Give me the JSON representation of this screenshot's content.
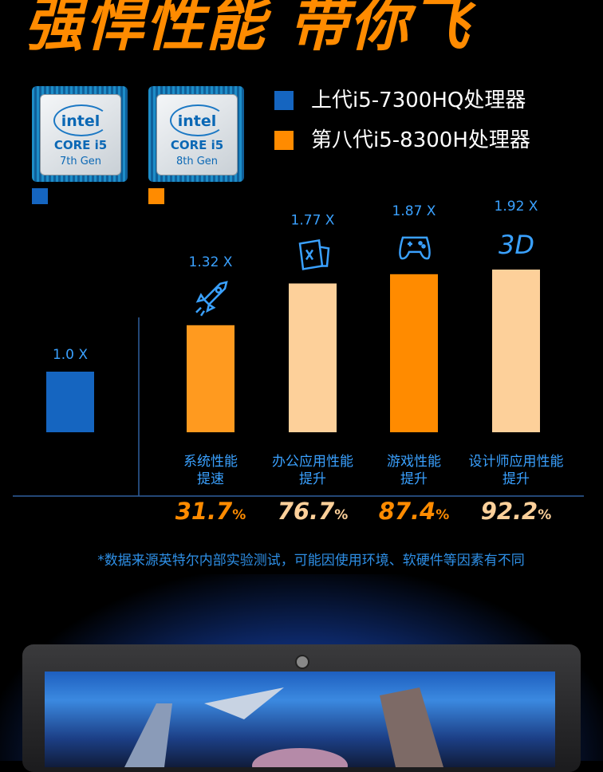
{
  "title": "强悍性能 带你飞",
  "chips": [
    {
      "brand": "intel",
      "core": "CORE i5",
      "gen": "7th Gen",
      "color": "#1565c0"
    },
    {
      "brand": "intel",
      "core": "CORE i5",
      "gen": "8th Gen",
      "color": "#ff8b00"
    }
  ],
  "legend": [
    {
      "label": "上代i5-7300HQ处理器",
      "color": "#1565c0"
    },
    {
      "label": "第八代i5-8300H处理器",
      "color": "#ff8b00"
    }
  ],
  "chart_data": {
    "type": "bar",
    "categories": [
      "",
      "系统性能提速",
      "办公应用性能提升",
      "游戏性能提升",
      "设计师应用性能提升"
    ],
    "values": [
      1.0,
      1.32,
      1.77,
      1.87,
      1.92
    ],
    "value_labels": [
      "1.0 X",
      "1.32 X",
      "1.77 X",
      "1.87 X",
      "1.92 X"
    ],
    "bar_colors": [
      "#1565c0",
      "#ff9a1f",
      "#fdd09a",
      "#ff8b00",
      "#fdd09a"
    ],
    "category_lines": [
      [
        "",
        ""
      ],
      [
        "系统性能",
        "提速"
      ],
      [
        "办公应用性能",
        "提升"
      ],
      [
        "游戏性能",
        "提升"
      ],
      [
        "设计师应用性能",
        "提升"
      ]
    ],
    "improvements": [
      {
        "value": "31.7",
        "unit": "%",
        "color": "#ff8b00"
      },
      {
        "value": "76.7",
        "unit": "%",
        "color": "#fdd09a"
      },
      {
        "value": "87.4",
        "unit": "%",
        "color": "#ff8b00"
      },
      {
        "value": "92.2",
        "unit": "%",
        "color": "#fdd09a"
      }
    ],
    "icons": [
      "",
      "rocket-icon",
      "office-document-icon",
      "gamepad-icon",
      "3d-icon"
    ],
    "icon_text_3d": "3D",
    "ylim": [
      0,
      2.2
    ]
  },
  "note": "*数据来源英特尔内部实验测试，可能因使用环境、软硬件等因素有不同"
}
